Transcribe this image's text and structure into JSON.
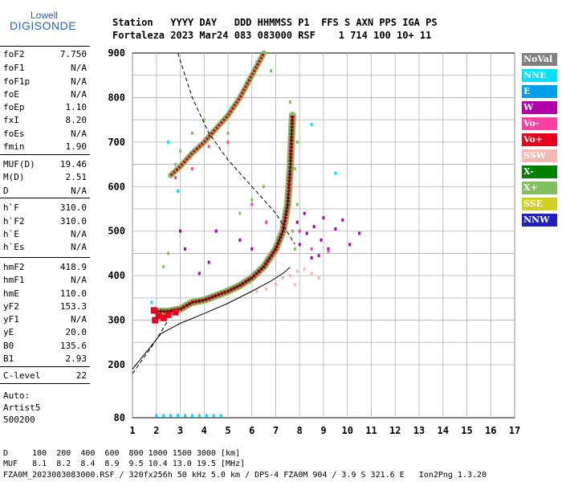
{
  "logo": {
    "top": "Lowell",
    "bottom": "DIGISONDE"
  },
  "header": {
    "line1": "Station   YYYY DAY   DDD HHMMSS P1  FFS S AXN PPS IGA PS",
    "line2": "Fortaleza 2023 Mar24 083 083000 RSF    1 714 100 10+ 11"
  },
  "params": [
    {
      "name": "foF2",
      "value": "7.750"
    },
    {
      "name": "foF1",
      "value": "N/A"
    },
    {
      "name": "foF1p",
      "value": "N/A"
    },
    {
      "name": "foE",
      "value": "N/A"
    },
    {
      "name": "foEp",
      "value": "1.10"
    },
    {
      "name": "fxI",
      "value": "8.20"
    },
    {
      "name": "foEs",
      "value": "N/A"
    },
    {
      "name": "fmin",
      "value": "1.90"
    },
    {
      "name": "MUF(D)",
      "value": "19.46"
    },
    {
      "name": "M(D)",
      "value": "2.51"
    },
    {
      "name": "D",
      "value": "N/A"
    },
    {
      "name": "h`F",
      "value": "310.0"
    },
    {
      "name": "h`F2",
      "value": "310.0"
    },
    {
      "name": "h`E",
      "value": "N/A"
    },
    {
      "name": "h`Es",
      "value": "N/A"
    },
    {
      "name": "hmF2",
      "value": "418.9"
    },
    {
      "name": "hmF1",
      "value": "N/A"
    },
    {
      "name": "hmE",
      "value": "110.0"
    },
    {
      "name": "yF2",
      "value": "153.3"
    },
    {
      "name": "yF1",
      "value": "N/A"
    },
    {
      "name": "yE",
      "value": "20.0"
    },
    {
      "name": "B0",
      "value": "135.6"
    },
    {
      "name": "B1",
      "value": "2.93"
    },
    {
      "name": "C-level",
      "value": "22"
    }
  ],
  "autoscale": {
    "line1": "Auto:",
    "line2": "Artist5",
    "line3": "500200"
  },
  "legend": [
    {
      "label": "NoVal",
      "bg": "#808080",
      "fg": "#ffffff"
    },
    {
      "label": "NNE",
      "bg": "#00e0ff",
      "fg": "#ffffff"
    },
    {
      "label": "E",
      "bg": "#00a0e8",
      "fg": "#ffffff"
    },
    {
      "label": "W",
      "bg": "#b000a8",
      "fg": "#ffffff"
    },
    {
      "label": "Vo-",
      "bg": "#ff40a0",
      "fg": "#ffffff"
    },
    {
      "label": "Vo+",
      "bg": "#e8001c",
      "fg": "#ffffff"
    },
    {
      "label": "SSW",
      "bg": "#f4b8b0",
      "fg": "#ffffff"
    },
    {
      "label": "X-",
      "bg": "#008000",
      "fg": "#ffffff"
    },
    {
      "label": "X+",
      "bg": "#80c060",
      "fg": "#ffffff"
    },
    {
      "label": "SSE",
      "bg": "#d0d020",
      "fg": "#ffffff"
    },
    {
      "label": "NNW",
      "bg": "#2020c0",
      "fg": "#ffffff"
    }
  ],
  "footer": {
    "d_row": "D     100  200  400  600  800 1000 1500 3000 [km]",
    "muf_row": "MUF   8.1  8.2  8.4  8.9  9.5 10.4 13.0 19.5 [MHz]",
    "info": "FZA0M_2023083083000.RSF / 320fx256h 50 kHz 5.0 km / DPS-4 FZA0M 904 / 3.9 S 321.6 E   Ion2Png 1.3.20"
  },
  "chart_data": {
    "type": "scatter",
    "xlim": [
      1,
      17
    ],
    "ylim": [
      80,
      900
    ],
    "xticks": [
      "1",
      "2",
      "3",
      "4",
      "5",
      "6",
      "7",
      "8",
      "9",
      "10",
      "11",
      "12",
      "13",
      "14",
      "15",
      "16",
      "17"
    ],
    "yticks": [
      "80",
      "200",
      "300",
      "400",
      "500",
      "600",
      "700",
      "800",
      "900"
    ],
    "grid": true,
    "profile": {
      "x": [
        1.0,
        1.6,
        2.2,
        3.0,
        4.0,
        5.0,
        6.0,
        6.8,
        7.3,
        7.6
      ],
      "y": [
        190,
        230,
        270,
        293,
        315,
        338,
        365,
        388,
        405,
        419
      ]
    },
    "dashed_trace": {
      "x": [
        1.0,
        1.8,
        2.5,
        2.9,
        3.5,
        4.2,
        5.0,
        6.0,
        7.0,
        7.8
      ],
      "y": [
        180,
        240,
        300,
        900,
        800,
        720,
        660,
        600,
        540,
        470
      ]
    },
    "o_trace": {
      "x": [
        2.0,
        2.5,
        3.0,
        3.5,
        4.0,
        4.5,
        5.0,
        5.5,
        6.0,
        6.5,
        7.0,
        7.3,
        7.5,
        7.6,
        7.7
      ],
      "y": [
        320,
        320,
        325,
        340,
        345,
        355,
        365,
        378,
        395,
        420,
        460,
        500,
        560,
        640,
        760
      ]
    },
    "x_trace": {
      "x": [
        2.6,
        3.0,
        3.5,
        4.0,
        4.5,
        5.0,
        5.5,
        6.0,
        6.5
      ],
      "y": [
        625,
        645,
        675,
        700,
        730,
        760,
        800,
        850,
        900
      ]
    },
    "scatter_groups": [
      {
        "name": "W",
        "points": [
          [
            8.0,
            470
          ],
          [
            8.3,
            495
          ],
          [
            8.6,
            510
          ],
          [
            8.9,
            480
          ],
          [
            9.2,
            460
          ],
          [
            9.5,
            505
          ],
          [
            9.8,
            525
          ],
          [
            10.1,
            470
          ],
          [
            10.5,
            495
          ],
          [
            8.5,
            440
          ],
          [
            8.8,
            445
          ],
          [
            7.9,
            520
          ],
          [
            8.2,
            540
          ],
          [
            9.0,
            530
          ],
          [
            6.0,
            460
          ],
          [
            5.5,
            480
          ],
          [
            4.2,
            430
          ],
          [
            3.8,
            405
          ],
          [
            3.2,
            460
          ],
          [
            3.0,
            500
          ],
          [
            4.5,
            500
          ]
        ]
      },
      {
        "name": "X+",
        "points": [
          [
            7.8,
            460
          ],
          [
            7.7,
            500
          ],
          [
            7.9,
            560
          ],
          [
            7.6,
            600
          ],
          [
            7.8,
            640
          ],
          [
            7.9,
            700
          ],
          [
            7.7,
            720
          ],
          [
            5.5,
            540
          ],
          [
            6.0,
            570
          ],
          [
            6.5,
            600
          ],
          [
            2.8,
            650
          ],
          [
            3.0,
            680
          ],
          [
            3.5,
            720
          ],
          [
            4.0,
            750
          ],
          [
            2.5,
            450
          ],
          [
            2.3,
            420
          ],
          [
            6.2,
            880
          ],
          [
            6.8,
            860
          ],
          [
            5.0,
            720
          ],
          [
            7.6,
            790
          ]
        ]
      },
      {
        "name": "SSW",
        "points": [
          [
            7.0,
            380
          ],
          [
            7.3,
            395
          ],
          [
            7.6,
            400
          ],
          [
            7.9,
            410
          ],
          [
            8.2,
            415
          ],
          [
            8.5,
            405
          ],
          [
            8.8,
            395
          ],
          [
            6.6,
            370
          ],
          [
            6.2,
            365
          ],
          [
            7.8,
            380
          ]
        ]
      },
      {
        "name": "NNE",
        "points": [
          [
            2.0,
            85
          ],
          [
            2.3,
            85
          ],
          [
            2.6,
            85
          ],
          [
            2.9,
            85
          ],
          [
            3.2,
            85
          ],
          [
            3.5,
            85
          ],
          [
            3.8,
            85
          ],
          [
            4.1,
            85
          ],
          [
            4.4,
            85
          ],
          [
            4.7,
            85
          ],
          [
            8.5,
            740
          ],
          [
            9.5,
            630
          ],
          [
            1.8,
            340
          ],
          [
            2.5,
            700
          ],
          [
            2.9,
            590
          ]
        ]
      },
      {
        "name": "Vo-",
        "points": [
          [
            2.8,
            620
          ],
          [
            3.5,
            640
          ],
          [
            4.2,
            690
          ],
          [
            5.0,
            700
          ],
          [
            6.0,
            560
          ],
          [
            6.6,
            520
          ],
          [
            7.4,
            530
          ],
          [
            8.0,
            500
          ],
          [
            8.5,
            460
          ],
          [
            9.2,
            455
          ]
        ]
      }
    ]
  }
}
